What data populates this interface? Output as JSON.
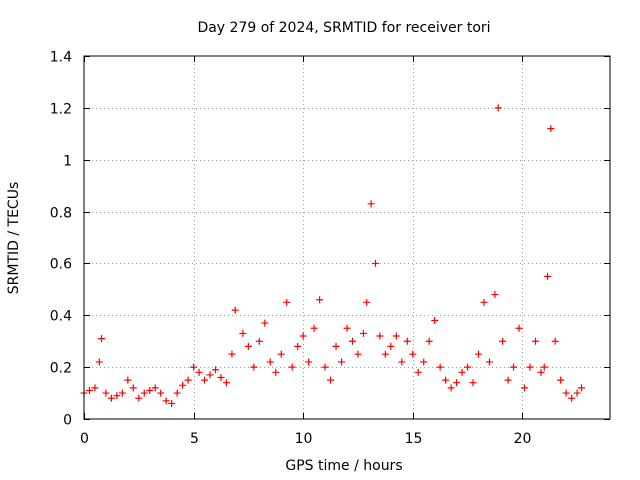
{
  "chart_data": {
    "type": "scatter",
    "title": "Day 279 of 2024, SRMTID for receiver tori",
    "xlabel": "GPS time / hours",
    "ylabel": "SRMTID / TECUs",
    "xlim": [
      0,
      24
    ],
    "ylim": [
      0,
      1.4
    ],
    "xticks": [
      0,
      5,
      10,
      15,
      20
    ],
    "xtick_labels": [
      "0",
      "5",
      "10",
      "15",
      "20"
    ],
    "yticks": [
      0,
      0.2,
      0.4,
      0.6,
      0.8,
      1,
      1.2,
      1.4
    ],
    "ytick_labels": [
      "0",
      "0.2",
      "0.4",
      "0.6",
      "0.8",
      "1",
      "1.2",
      "1.4"
    ],
    "grid": true,
    "marker": "+",
    "color": "#ff0000",
    "series": [
      {
        "name": "tori",
        "x": [
          0.0,
          0.25,
          0.5,
          0.7,
          0.8,
          1.0,
          1.25,
          1.5,
          1.75,
          2.0,
          2.25,
          2.5,
          2.75,
          3.0,
          3.25,
          3.5,
          3.75,
          4.0,
          4.25,
          4.5,
          4.75,
          5.0,
          5.25,
          5.5,
          5.75,
          6.0,
          6.25,
          6.5,
          6.75,
          6.9,
          7.25,
          7.5,
          7.75,
          8.0,
          8.25,
          8.5,
          8.75,
          9.0,
          9.25,
          9.5,
          9.75,
          10.0,
          10.25,
          10.5,
          10.75,
          11.0,
          11.25,
          11.5,
          11.75,
          12.0,
          12.25,
          12.5,
          12.75,
          12.9,
          13.1,
          13.3,
          13.5,
          13.75,
          14.0,
          14.25,
          14.5,
          14.75,
          15.0,
          15.25,
          15.5,
          15.75,
          16.0,
          16.25,
          16.5,
          16.75,
          17.0,
          17.25,
          17.5,
          17.75,
          18.0,
          18.25,
          18.5,
          18.75,
          18.9,
          19.1,
          19.35,
          19.6,
          19.85,
          20.1,
          20.35,
          20.6,
          20.85,
          21.0,
          21.15,
          21.3,
          21.5,
          21.75,
          22.0,
          22.25,
          22.5,
          22.7
        ],
        "y": [
          0.1,
          0.11,
          0.12,
          0.22,
          0.31,
          0.1,
          0.08,
          0.09,
          0.1,
          0.15,
          0.12,
          0.08,
          0.1,
          0.11,
          0.12,
          0.1,
          0.07,
          0.06,
          0.1,
          0.13,
          0.15,
          0.2,
          0.18,
          0.15,
          0.17,
          0.19,
          0.16,
          0.14,
          0.25,
          0.42,
          0.33,
          0.28,
          0.2,
          0.3,
          0.37,
          0.22,
          0.18,
          0.25,
          0.45,
          0.2,
          0.28,
          0.32,
          0.22,
          0.35,
          0.46,
          0.2,
          0.15,
          0.28,
          0.22,
          0.35,
          0.3,
          0.25,
          0.33,
          0.45,
          0.83,
          0.6,
          0.32,
          0.25,
          0.28,
          0.32,
          0.22,
          0.3,
          0.25,
          0.18,
          0.22,
          0.3,
          0.38,
          0.2,
          0.15,
          0.12,
          0.14,
          0.18,
          0.2,
          0.14,
          0.25,
          0.45,
          0.22,
          0.48,
          1.2,
          0.3,
          0.15,
          0.2,
          0.35,
          0.12,
          0.2,
          0.3,
          0.18,
          0.2,
          0.55,
          1.12,
          0.3,
          0.15,
          0.1,
          0.08,
          0.1,
          0.12
        ]
      }
    ]
  }
}
